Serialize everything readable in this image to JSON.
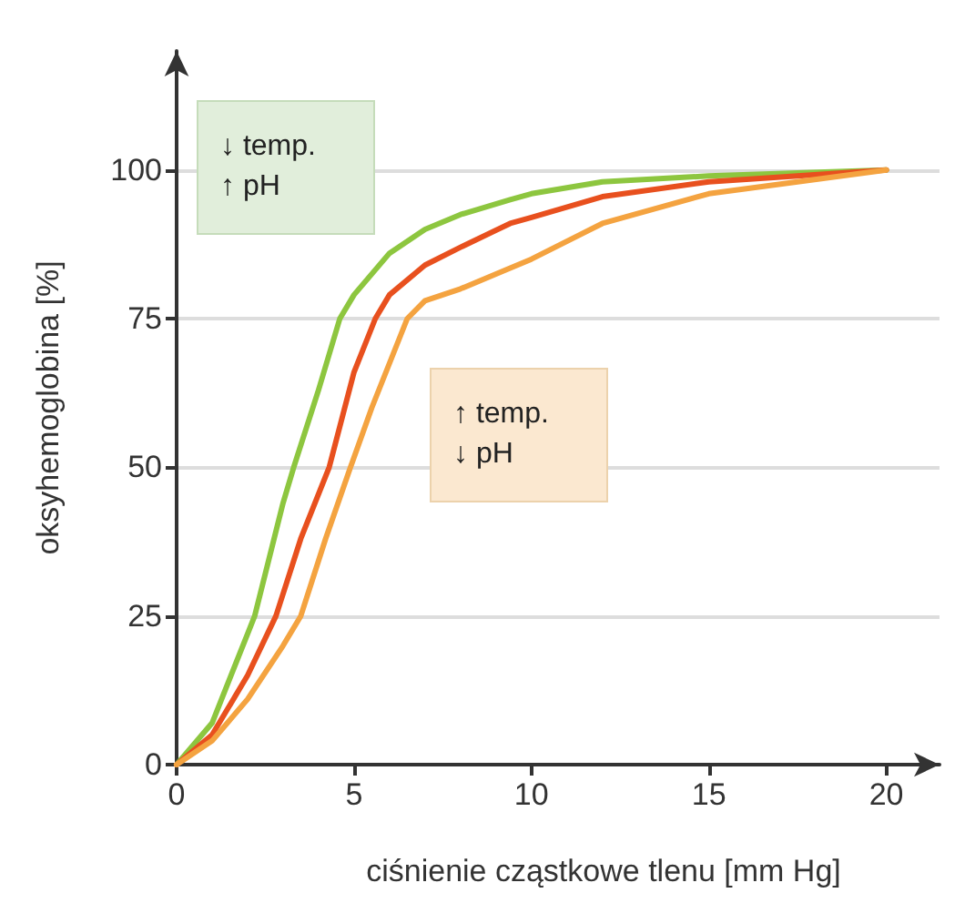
{
  "chart_data": {
    "type": "line",
    "xlabel": "ciśnienie cząstkowe tlenu [mm Hg]",
    "ylabel": "oksyhemoglobina [%]",
    "annotations": [
      "↓ temp.\n↑ pH",
      "↑ temp.\n↓ pH"
    ],
    "xlim": [
      0,
      21.5
    ],
    "ylim": [
      0,
      120
    ],
    "xticks": [
      0,
      5,
      10,
      15,
      20
    ],
    "yticks": [
      0,
      25,
      50,
      75,
      100
    ],
    "grid": "y",
    "marker": "none",
    "line_style": "solid",
    "series": [
      {
        "color": "#8dc63f",
        "x": [
          0,
          1,
          2,
          2.2,
          3,
          3.3,
          4,
          4.6,
          5,
          6,
          7,
          8,
          9.4,
          10,
          12,
          15,
          20
        ],
        "values": [
          0,
          7,
          22,
          25,
          44,
          50,
          63,
          75,
          79,
          86,
          90,
          92.5,
          95,
          96,
          98,
          99,
          100
        ]
      },
      {
        "color": "#e8501e",
        "x": [
          0,
          1,
          2,
          2.8,
          3.5,
          4.3,
          5,
          5.6,
          6,
          7,
          8,
          9.4,
          10,
          12,
          15,
          20
        ],
        "values": [
          0,
          5,
          15,
          25,
          38,
          50,
          66,
          75,
          79,
          84,
          87,
          91,
          92,
          95.5,
          98,
          100
        ]
      },
      {
        "color": "#f4a340",
        "x": [
          0,
          1,
          2,
          3,
          3.5,
          4.2,
          4.9,
          5.5,
          6.5,
          7,
          8,
          9.4,
          10,
          12,
          15,
          20
        ],
        "values": [
          0,
          4,
          11,
          20,
          25,
          38,
          50,
          60,
          75,
          78,
          80,
          83.5,
          85,
          91,
          96,
          100
        ]
      }
    ]
  }
}
